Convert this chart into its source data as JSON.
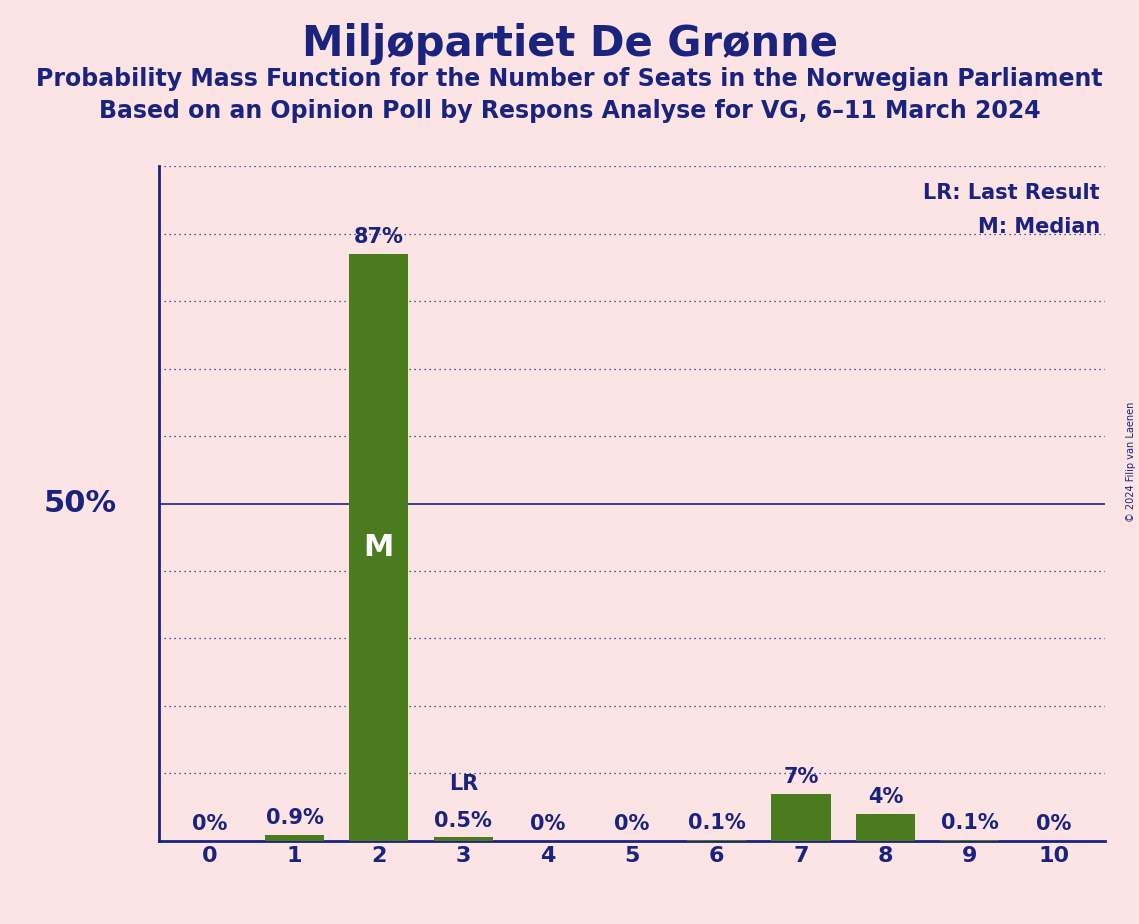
{
  "title": "Miljøpartiet De Grønne",
  "subtitle1": "Probability Mass Function for the Number of Seats in the Norwegian Parliament",
  "subtitle2": "Based on an Opinion Poll by Respons Analyse for VG, 6–11 March 2024",
  "copyright": "© 2024 Filip van Laenen",
  "categories": [
    0,
    1,
    2,
    3,
    4,
    5,
    6,
    7,
    8,
    9,
    10
  ],
  "values": [
    0.0,
    0.9,
    87.0,
    0.5,
    0.0,
    0.0,
    0.1,
    7.0,
    4.0,
    0.1,
    0.0
  ],
  "bar_labels": [
    "0%",
    "0.9%",
    "87%",
    "0.5%",
    "0%",
    "0%",
    "0.1%",
    "7%",
    "4%",
    "0.1%",
    "0%"
  ],
  "bar_color": "#4a7c1f",
  "median_bar_idx": 2,
  "lr_bar_idx": 3,
  "median_label": "M",
  "lr_label": "LR",
  "legend_lr": "LR: Last Result",
  "legend_m": "M: Median",
  "background_color": "#fce4e4",
  "title_color": "#1a237e",
  "bar_label_color": "#1a237e",
  "axis_color": "#1a237e",
  "grid_color": "#1a237e",
  "ylim": [
    0,
    100
  ],
  "title_fontsize": 30,
  "subtitle_fontsize": 17,
  "bar_label_fontsize": 15,
  "axis_tick_fontsize": 16,
  "legend_fontsize": 15,
  "fifty_label_fontsize": 22,
  "median_label_color": "#ffffff",
  "median_label_fontsize": 22,
  "lr_label_fontsize": 15
}
